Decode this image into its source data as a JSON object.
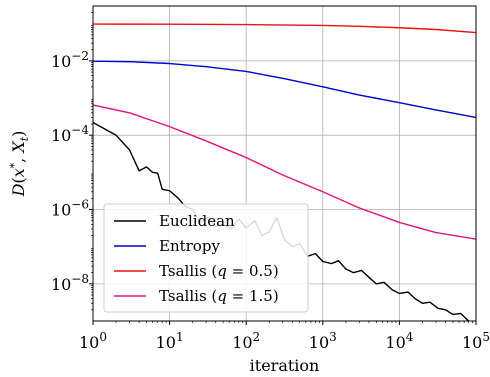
{
  "chart_data": {
    "type": "line",
    "title": "",
    "xlabel": "iteration",
    "ylabel": "D(x*, X_t)",
    "xscale": "log",
    "yscale": "log",
    "xlim": [
      1,
      100000
    ],
    "ylim": [
      1e-09,
      0.3
    ],
    "grid": true,
    "legend_position": "lower-left",
    "x_ticks": [
      {
        "value": 1,
        "label": "10^0"
      },
      {
        "value": 10,
        "label": "10^1"
      },
      {
        "value": 100,
        "label": "10^2"
      },
      {
        "value": 1000,
        "label": "10^3"
      },
      {
        "value": 10000,
        "label": "10^4"
      },
      {
        "value": 100000,
        "label": "10^5"
      }
    ],
    "y_ticks": [
      {
        "value": 1e-08,
        "label": "10^-8"
      },
      {
        "value": 1e-06,
        "label": "10^-6"
      },
      {
        "value": 0.0001,
        "label": "10^-4"
      },
      {
        "value": 0.01,
        "label": "10^-2"
      }
    ],
    "series": [
      {
        "name": "Euclidean",
        "color": "#000000",
        "x": [
          1,
          2,
          3,
          4,
          5,
          6,
          7,
          8,
          10,
          13,
          16,
          20,
          25,
          32,
          40,
          50,
          63,
          80,
          100,
          130,
          160,
          200,
          250,
          320,
          400,
          500,
          630,
          800,
          1000,
          1300,
          1600,
          2000,
          2500,
          3200,
          4000,
          5000,
          6300,
          8000,
          10000,
          13000,
          16000,
          20000,
          25000,
          32000,
          40000,
          50000,
          63000,
          80000,
          100000
        ],
        "y": [
          0.00022,
          0.0001,
          4e-05,
          1.1e-05,
          1.4e-05,
          1e-05,
          9.5e-06,
          3.5e-06,
          3.2e-06,
          2e-06,
          1.2e-06,
          1e-06,
          4.5e-07,
          6.2e-07,
          3.5e-07,
          4e-07,
          3e-07,
          5.5e-07,
          3.2e-07,
          5e-07,
          2e-07,
          2.5e-07,
          6e-07,
          1.5e-07,
          1e-07,
          1.2e-07,
          5.5e-08,
          6.5e-08,
          4e-08,
          3.5e-08,
          4.2e-08,
          2.5e-08,
          2e-08,
          2.3e-08,
          1.5e-08,
          1e-08,
          1.1e-08,
          7e-09,
          5.5e-09,
          6e-09,
          4e-09,
          3e-09,
          3.2e-09,
          2.2e-09,
          2e-09,
          1.5e-09,
          1.6e-09,
          1e-09,
          8.5e-10
        ]
      },
      {
        "name": "Entropy",
        "color": "#0000cc",
        "x": [
          1,
          3,
          10,
          30,
          100,
          300,
          1000,
          3000,
          10000,
          30000,
          100000
        ],
        "y": [
          0.0098,
          0.0095,
          0.0085,
          0.007,
          0.0052,
          0.0034,
          0.002,
          0.0012,
          0.00075,
          0.00048,
          0.0003
        ]
      },
      {
        "name": "Tsallis (q = 0.5)",
        "color": "#ee1111",
        "x": [
          1,
          10,
          100,
          1000,
          3000,
          10000,
          30000,
          100000
        ],
        "y": [
          0.098,
          0.097,
          0.095,
          0.09,
          0.085,
          0.078,
          0.07,
          0.058
        ]
      },
      {
        "name": "Tsallis (q = 1.5)",
        "color": "#e0147e",
        "x": [
          1,
          3,
          10,
          30,
          100,
          300,
          1000,
          3000,
          10000,
          30000,
          100000
        ],
        "y": [
          0.00065,
          0.0004,
          0.00017,
          7e-05,
          2.5e-05,
          8.5e-06,
          3e-06,
          1.1e-06,
          4.5e-07,
          2.4e-07,
          1.6e-07
        ]
      }
    ]
  }
}
